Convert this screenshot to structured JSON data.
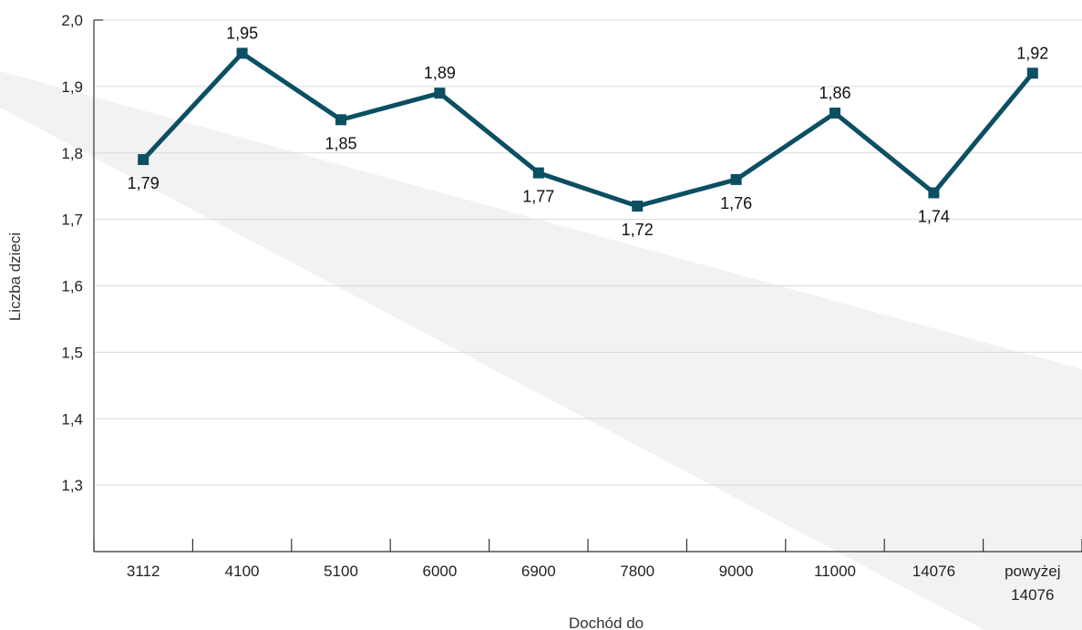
{
  "chart_data": {
    "type": "line",
    "title": "",
    "xlabel": "Dochód do",
    "ylabel": "Liczba dzieci",
    "categories": [
      [
        "3112"
      ],
      [
        "4100"
      ],
      [
        "5100"
      ],
      [
        "6000"
      ],
      [
        "6900"
      ],
      [
        "7800"
      ],
      [
        "9000"
      ],
      [
        "11000"
      ],
      [
        "14076"
      ],
      [
        "powyżej",
        "14076"
      ]
    ],
    "series": [
      {
        "values": [
          1.79,
          1.95,
          1.85,
          1.89,
          1.77,
          1.72,
          1.76,
          1.86,
          1.74,
          1.92
        ],
        "data_labels": [
          "1,79",
          "1,95",
          "1,85",
          "1,89",
          "1,77",
          "1,72",
          "1,76",
          "1,86",
          "1,74",
          "1,92"
        ],
        "color": "#0b4f63"
      }
    ],
    "ylim": [
      1.2,
      2.0
    ],
    "yticks": [
      {
        "value": 1.3,
        "label": "1,3"
      },
      {
        "value": 1.4,
        "label": "1,4"
      },
      {
        "value": 1.5,
        "label": "1,5"
      },
      {
        "value": 1.6,
        "label": "1,6"
      },
      {
        "value": 1.7,
        "label": "1,7"
      },
      {
        "value": 1.8,
        "label": "1,8"
      },
      {
        "value": 1.9,
        "label": "1,9"
      },
      {
        "value": 2.0,
        "label": "2,0"
      }
    ],
    "grid": true,
    "legend": "none",
    "marker": "square",
    "gridline_color": "#d9d9d9",
    "background_band_color": "#f2f2f2"
  }
}
